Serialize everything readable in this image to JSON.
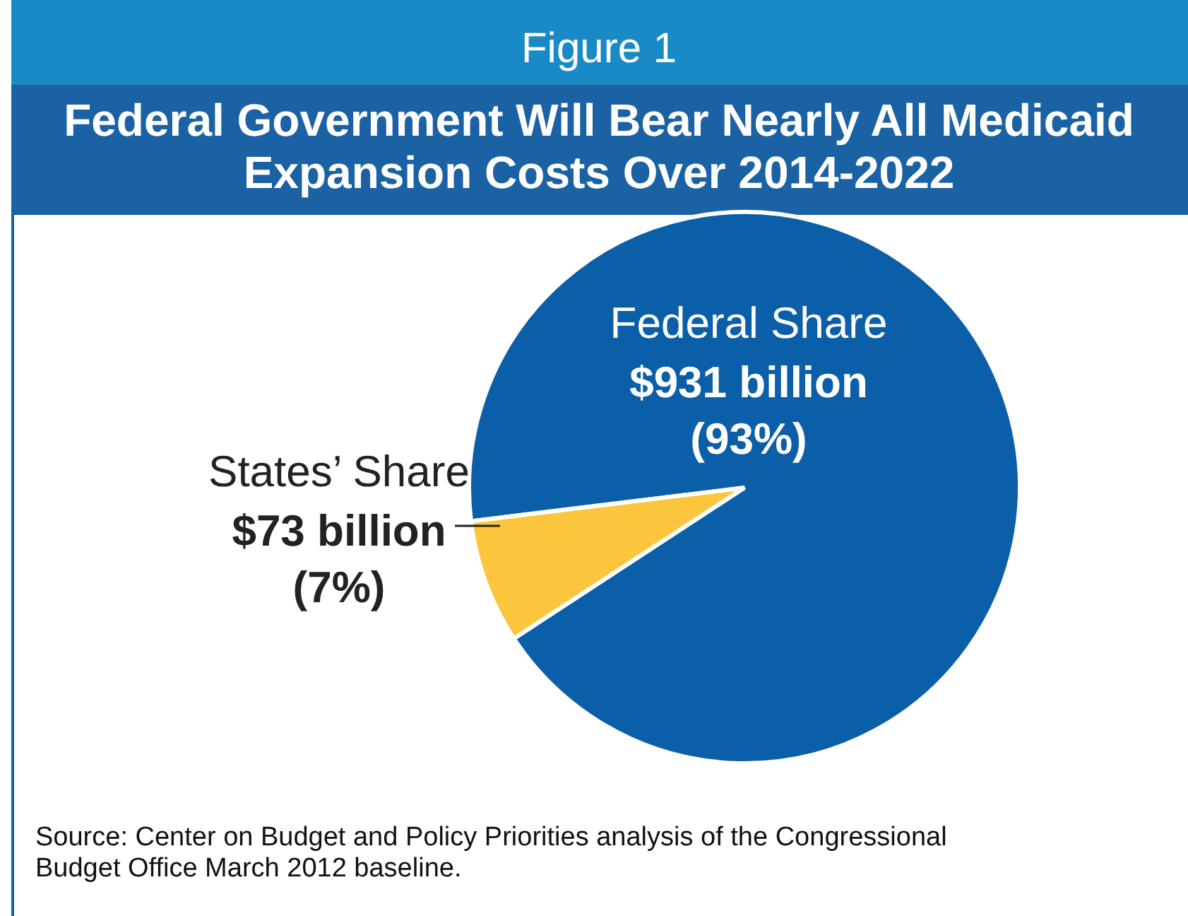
{
  "chart_data": {
    "type": "pie",
    "title": "Figure 1",
    "subtitle": "Federal Government Will Bear Nearly All Medicaid Expansion Costs Over 2014-2022",
    "categories": [
      "Federal Share",
      "States’ Share"
    ],
    "values": [
      931,
      73
    ],
    "colors": [
      "#0b5ea8",
      "#fbc53e"
    ],
    "value_labels": [
      "$931 billion",
      "$73 billion"
    ],
    "annotations": [
      "(93%)",
      "(7%)",
      "Source:  Center on Budget and Policy Priorities analysis of the Congressional Budget Office March 2012 baseline."
    ]
  }
}
